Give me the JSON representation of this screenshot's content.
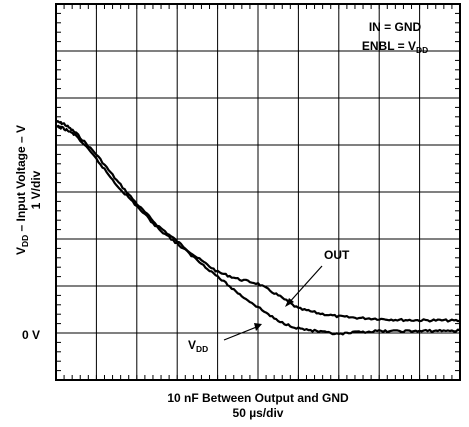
{
  "chart_data": {
    "type": "line",
    "title": "",
    "annotations": {
      "conditions": [
        {
          "main": "IN = GND",
          "sub": "",
          "after": ""
        },
        {
          "main": "ENBL = V",
          "sub": "DD",
          "after": ""
        }
      ],
      "out_label": "OUT",
      "vdd_label_main": "V",
      "vdd_label_sub": "DD",
      "zero_label": "0 V"
    },
    "ylabel": {
      "line1_main": "V",
      "line1_sub": "DD",
      "line1_rest": " – Input Voltage – V",
      "line2": "1 V/div"
    },
    "xlabel": {
      "line1": "10 nF Between Output and GND",
      "line2": "50 µs/div"
    },
    "x_unit": "µs",
    "y_unit": "V",
    "grid": true,
    "xlim": [
      0,
      500
    ],
    "ylim": [
      -1,
      7
    ],
    "series": [
      {
        "name": "OUT",
        "x": [
          0,
          10,
          25,
          50,
          75,
          100,
          125,
          150,
          175,
          200,
          225,
          250,
          275,
          300,
          325,
          350,
          375,
          400,
          425,
          450,
          475,
          500
        ],
        "y": [
          4.5,
          4.45,
          4.25,
          3.8,
          3.25,
          2.75,
          2.3,
          1.95,
          1.6,
          1.3,
          1.15,
          1.05,
          0.8,
          0.52,
          0.42,
          0.35,
          0.32,
          0.3,
          0.28,
          0.27,
          0.27,
          0.26
        ]
      },
      {
        "name": "VDD",
        "x": [
          0,
          10,
          25,
          50,
          75,
          100,
          125,
          150,
          175,
          200,
          225,
          250,
          275,
          300,
          325,
          350,
          375,
          400,
          425,
          450,
          475,
          500
        ],
        "y": [
          4.4,
          4.35,
          4.2,
          3.7,
          3.15,
          2.7,
          2.25,
          1.9,
          1.55,
          1.2,
          0.85,
          0.55,
          0.25,
          0.1,
          0.03,
          -0.03,
          0.02,
          0.04,
          0.04,
          0.04,
          0.05,
          0.05
        ]
      }
    ]
  }
}
